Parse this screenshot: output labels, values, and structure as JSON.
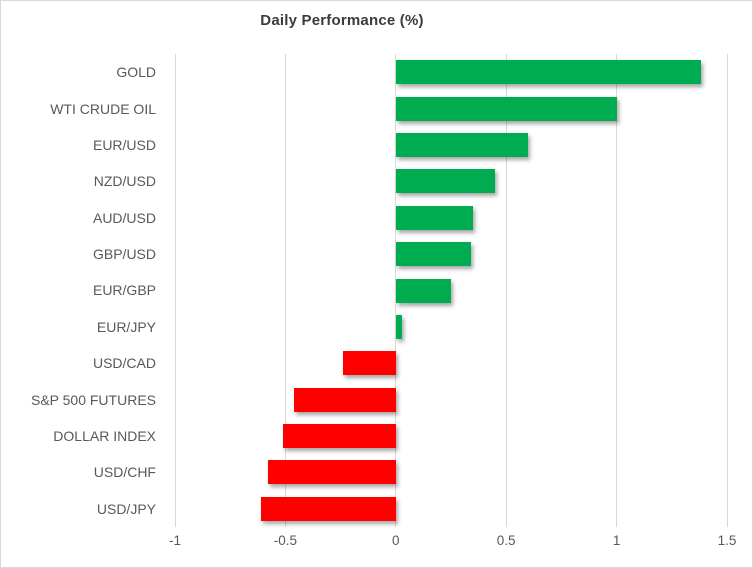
{
  "chart_data": {
    "type": "bar",
    "orientation": "horizontal",
    "title": "Daily Performance (%)",
    "categories": [
      "GOLD",
      "WTI CRUDE OIL",
      "EUR/USD",
      "NZD/USD",
      "AUD/USD",
      "GBP/USD",
      "EUR/GBP",
      "EUR/JPY",
      "USD/CAD",
      "S&P 500 FUTURES",
      "DOLLAR INDEX",
      "USD/CHF",
      "USD/JPY"
    ],
    "values": [
      1.38,
      1.0,
      0.6,
      0.45,
      0.35,
      0.34,
      0.25,
      0.03,
      -0.24,
      -0.46,
      -0.51,
      -0.58,
      -0.61
    ],
    "xlim": [
      -1,
      1.5
    ],
    "x_ticks": [
      -1,
      -0.5,
      0,
      0.5,
      1,
      1.5
    ],
    "x_tick_labels": [
      "-1",
      "-0.5",
      "0",
      "0.5",
      "1",
      "1.5"
    ],
    "xlabel": "",
    "ylabel": "",
    "grid": true,
    "legend": false,
    "positive_color": "#00ac50",
    "negative_color": "#ff0000",
    "gridline_color": "#d9d9d9",
    "title_color": "#3b3b3b",
    "label_color": "#595959"
  }
}
